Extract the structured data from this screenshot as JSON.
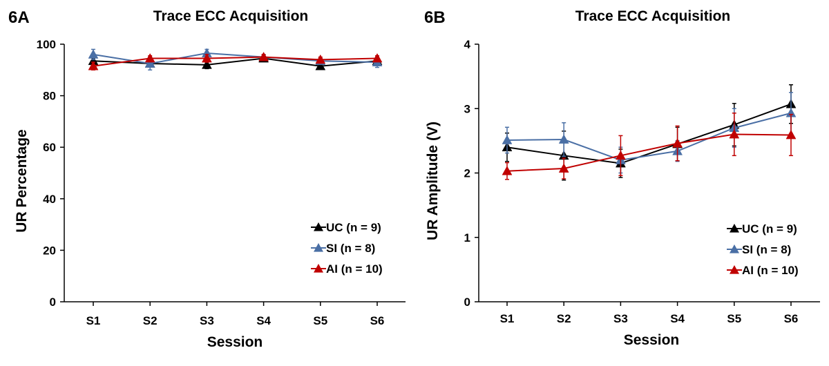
{
  "chart_data": [
    {
      "panel": "6A",
      "type": "line",
      "title": "Trace ECC Acquisition",
      "xlabel": "Session",
      "ylabel": "UR Percentage",
      "categories": [
        "S1",
        "S2",
        "S3",
        "S4",
        "S5",
        "S6"
      ],
      "ylim": [
        0,
        100
      ],
      "yticks": [
        0,
        20,
        40,
        60,
        80,
        100
      ],
      "yticks_labels": [
        "0",
        "20",
        "40",
        "60",
        "80",
        "100"
      ],
      "legend_position": "bottom-right",
      "series": [
        {
          "name": "UC (n = 9)",
          "color": "#000000",
          "values": [
            93.5,
            92.5,
            92.0,
            94.5,
            91.5,
            93.5
          ],
          "errors": [
            1.5,
            1.0,
            1.5,
            1.0,
            1.0,
            1.0
          ]
        },
        {
          "name": "SI (n = 8)",
          "color": "#4a6fa5",
          "values": [
            96.0,
            92.5,
            96.5,
            95.0,
            93.5,
            93.0
          ],
          "errors": [
            2.0,
            2.5,
            1.5,
            1.0,
            1.0,
            2.0
          ]
        },
        {
          "name": "AI (n = 10)",
          "color": "#c00000",
          "values": [
            91.5,
            94.5,
            94.5,
            95.0,
            94.0,
            94.5
          ],
          "errors": [
            1.5,
            1.0,
            1.5,
            1.0,
            1.0,
            1.0
          ]
        }
      ]
    },
    {
      "panel": "6B",
      "type": "line",
      "title": "Trace ECC Acquisition",
      "xlabel": "Session",
      "ylabel": "UR Amplitude (V)",
      "categories": [
        "S1",
        "S2",
        "S3",
        "S4",
        "S5",
        "S6"
      ],
      "ylim": [
        0,
        4
      ],
      "yticks": [
        0,
        1,
        2,
        3,
        4
      ],
      "yticks_labels": [
        "0",
        "1",
        "2",
        "3",
        "4"
      ],
      "legend_position": "bottom-right",
      "series": [
        {
          "name": "UC (n = 9)",
          "color": "#000000",
          "values": [
            2.4,
            2.27,
            2.15,
            2.45,
            2.75,
            3.07
          ],
          "errors": [
            0.22,
            0.38,
            0.22,
            0.26,
            0.33,
            0.3
          ]
        },
        {
          "name": "SI (n = 8)",
          "color": "#4a6fa5",
          "values": [
            2.51,
            2.52,
            2.2,
            2.34,
            2.7,
            2.93
          ],
          "errors": [
            0.2,
            0.26,
            0.2,
            0.16,
            0.3,
            0.32
          ]
        },
        {
          "name": "AI (n = 10)",
          "color": "#c00000",
          "values": [
            2.03,
            2.07,
            2.27,
            2.46,
            2.6,
            2.59
          ],
          "errors": [
            0.13,
            0.16,
            0.31,
            0.27,
            0.33,
            0.32
          ]
        }
      ]
    }
  ]
}
